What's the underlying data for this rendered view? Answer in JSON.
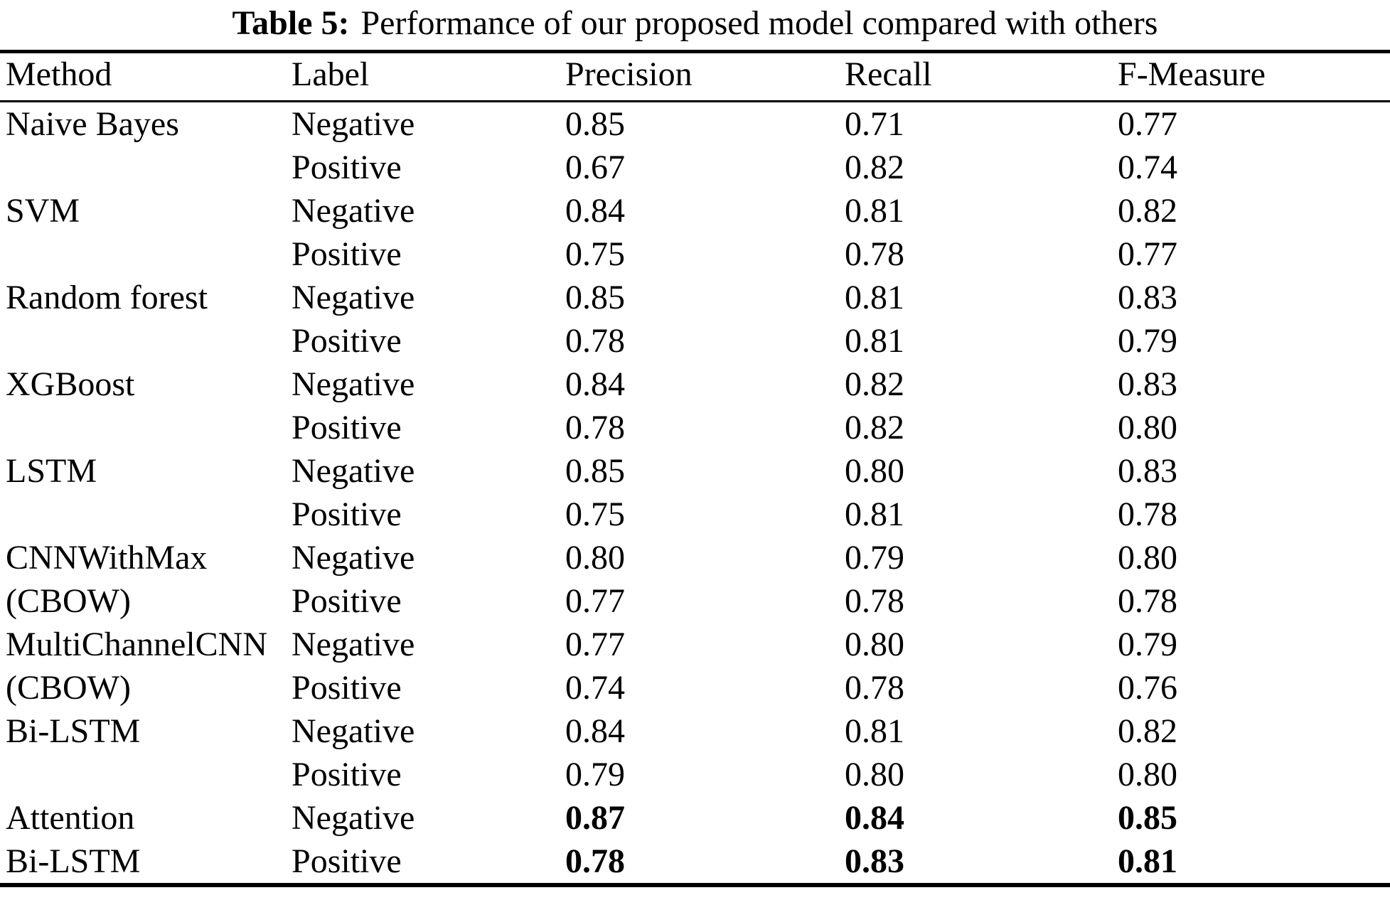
{
  "caption": {
    "label": "Table 5:",
    "text": "Performance of our proposed model compared with others"
  },
  "colors": {
    "text": "#000000",
    "background": "#ffffff",
    "rules": "#000000"
  },
  "table": {
    "headers": [
      "Method",
      "Label",
      "Precision",
      "Recall",
      "F-Measure"
    ],
    "groups": [
      {
        "method_lines": [
          "Naive Bayes",
          ""
        ],
        "entries": [
          {
            "label": "Negative",
            "precision": "0.85",
            "recall": "0.71",
            "f_measure": "0.77",
            "bold": false
          },
          {
            "label": "Positive",
            "precision": "0.67",
            "recall": "0.82",
            "f_measure": "0.74",
            "bold": false
          }
        ]
      },
      {
        "method_lines": [
          "SVM",
          ""
        ],
        "entries": [
          {
            "label": "Negative",
            "precision": "0.84",
            "recall": "0.81",
            "f_measure": "0.82",
            "bold": false
          },
          {
            "label": "Positive",
            "precision": "0.75",
            "recall": "0.78",
            "f_measure": "0.77",
            "bold": false
          }
        ]
      },
      {
        "method_lines": [
          "Random forest",
          ""
        ],
        "entries": [
          {
            "label": "Negative",
            "precision": "0.85",
            "recall": "0.81",
            "f_measure": "0.83",
            "bold": false
          },
          {
            "label": "Positive",
            "precision": "0.78",
            "recall": "0.81",
            "f_measure": "0.79",
            "bold": false
          }
        ]
      },
      {
        "method_lines": [
          "XGBoost",
          ""
        ],
        "entries": [
          {
            "label": "Negative",
            "precision": "0.84",
            "recall": "0.82",
            "f_measure": "0.83",
            "bold": false
          },
          {
            "label": "Positive",
            "precision": "0.78",
            "recall": "0.82",
            "f_measure": "0.80",
            "bold": false
          }
        ]
      },
      {
        "method_lines": [
          "LSTM",
          ""
        ],
        "entries": [
          {
            "label": "Negative",
            "precision": "0.85",
            "recall": "0.80",
            "f_measure": "0.83",
            "bold": false
          },
          {
            "label": "Positive",
            "precision": "0.75",
            "recall": "0.81",
            "f_measure": "0.78",
            "bold": false
          }
        ]
      },
      {
        "method_lines": [
          "CNNWithMax",
          "(CBOW)"
        ],
        "entries": [
          {
            "label": "Negative",
            "precision": "0.80",
            "recall": "0.79",
            "f_measure": "0.80",
            "bold": false
          },
          {
            "label": "Positive",
            "precision": "0.77",
            "recall": "0.78",
            "f_measure": "0.78",
            "bold": false
          }
        ]
      },
      {
        "method_lines": [
          "MultiChannelCNN",
          "(CBOW)"
        ],
        "entries": [
          {
            "label": "Negative",
            "precision": "0.77",
            "recall": "0.80",
            "f_measure": "0.79",
            "bold": false
          },
          {
            "label": "Positive",
            "precision": "0.74",
            "recall": "0.78",
            "f_measure": "0.76",
            "bold": false
          }
        ]
      },
      {
        "method_lines": [
          "Bi-LSTM",
          ""
        ],
        "entries": [
          {
            "label": "Negative",
            "precision": "0.84",
            "recall": "0.81",
            "f_measure": "0.82",
            "bold": false
          },
          {
            "label": "Positive",
            "precision": "0.79",
            "recall": "0.80",
            "f_measure": "0.80",
            "bold": false
          }
        ]
      },
      {
        "method_lines": [
          "Attention",
          "Bi-LSTM"
        ],
        "entries": [
          {
            "label": "Negative",
            "precision": "0.87",
            "recall": "0.84",
            "f_measure": "0.85",
            "bold": true
          },
          {
            "label": "Positive",
            "precision": "0.78",
            "recall": "0.83",
            "f_measure": "0.81",
            "bold": true
          }
        ]
      }
    ]
  }
}
